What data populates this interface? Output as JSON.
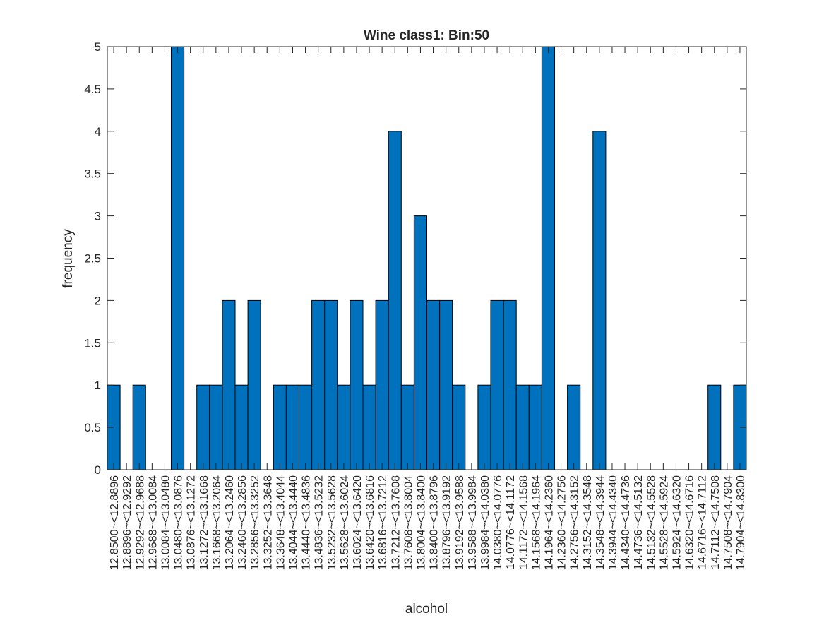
{
  "chart_data": {
    "type": "bar",
    "title": "Wine class1: Bin:50",
    "xlabel": "alcohol",
    "ylabel": "frequency",
    "ylim": [
      0,
      5
    ],
    "yticks": [
      0,
      0.5,
      1,
      1.5,
      2,
      2.5,
      3,
      3.5,
      4,
      4.5,
      5
    ],
    "bar_color": "#0072bd",
    "grid": false,
    "categories": [
      "12.8500~<12.8896",
      "12.8896~<12.9292",
      "12.9292~<12.9688",
      "12.9688~<13.0084",
      "13.0084~<13.0480",
      "13.0480~<13.0876",
      "13.0876~<13.1272",
      "13.1272~<13.1668",
      "13.1668~<13.2064",
      "13.2064~<13.2460",
      "13.2460~<13.2856",
      "13.2856~<13.3252",
      "13.3252~<13.3648",
      "13.3648~<13.4044",
      "13.4044~<13.4440",
      "13.4440~<13.4836",
      "13.4836~<13.5232",
      "13.5232~<13.5628",
      "13.5628~<13.6024",
      "13.6024~<13.6420",
      "13.6420~<13.6816",
      "13.6816~<13.7212",
      "13.7212~<13.7608",
      "13.7608~<13.8004",
      "13.8004~<13.8400",
      "13.8400~<13.8796",
      "13.8796~<13.9192",
      "13.9192~<13.9588",
      "13.9588~<13.9984",
      "13.9984~<14.0380",
      "14.0380~<14.0776",
      "14.0776~<14.1172",
      "14.1172~<14.1568",
      "14.1568~<14.1964",
      "14.1964~<14.2360",
      "14.2360~<14.2756",
      "14.2756~<14.3152",
      "14.3152~<14.3548",
      "14.3548~<14.3944",
      "14.3944~<14.4340",
      "14.4340~<14.4736",
      "14.4736~<14.5132",
      "14.5132~<14.5528",
      "14.5528~<14.5924",
      "14.5924~<14.6320",
      "14.6320~<14.6716",
      "14.6716~<14.7112",
      "14.7112~<14.7508",
      "14.7508~<14.7904",
      "14.7904~<14.8300"
    ],
    "values": [
      1,
      0,
      1,
      0,
      0,
      5,
      0,
      1,
      1,
      2,
      1,
      2,
      0,
      1,
      1,
      1,
      2,
      2,
      1,
      2,
      1,
      2,
      4,
      1,
      3,
      2,
      2,
      1,
      0,
      1,
      2,
      2,
      1,
      1,
      5,
      0,
      1,
      0,
      4,
      0,
      0,
      0,
      0,
      0,
      0,
      0,
      0,
      1,
      0,
      1
    ]
  }
}
